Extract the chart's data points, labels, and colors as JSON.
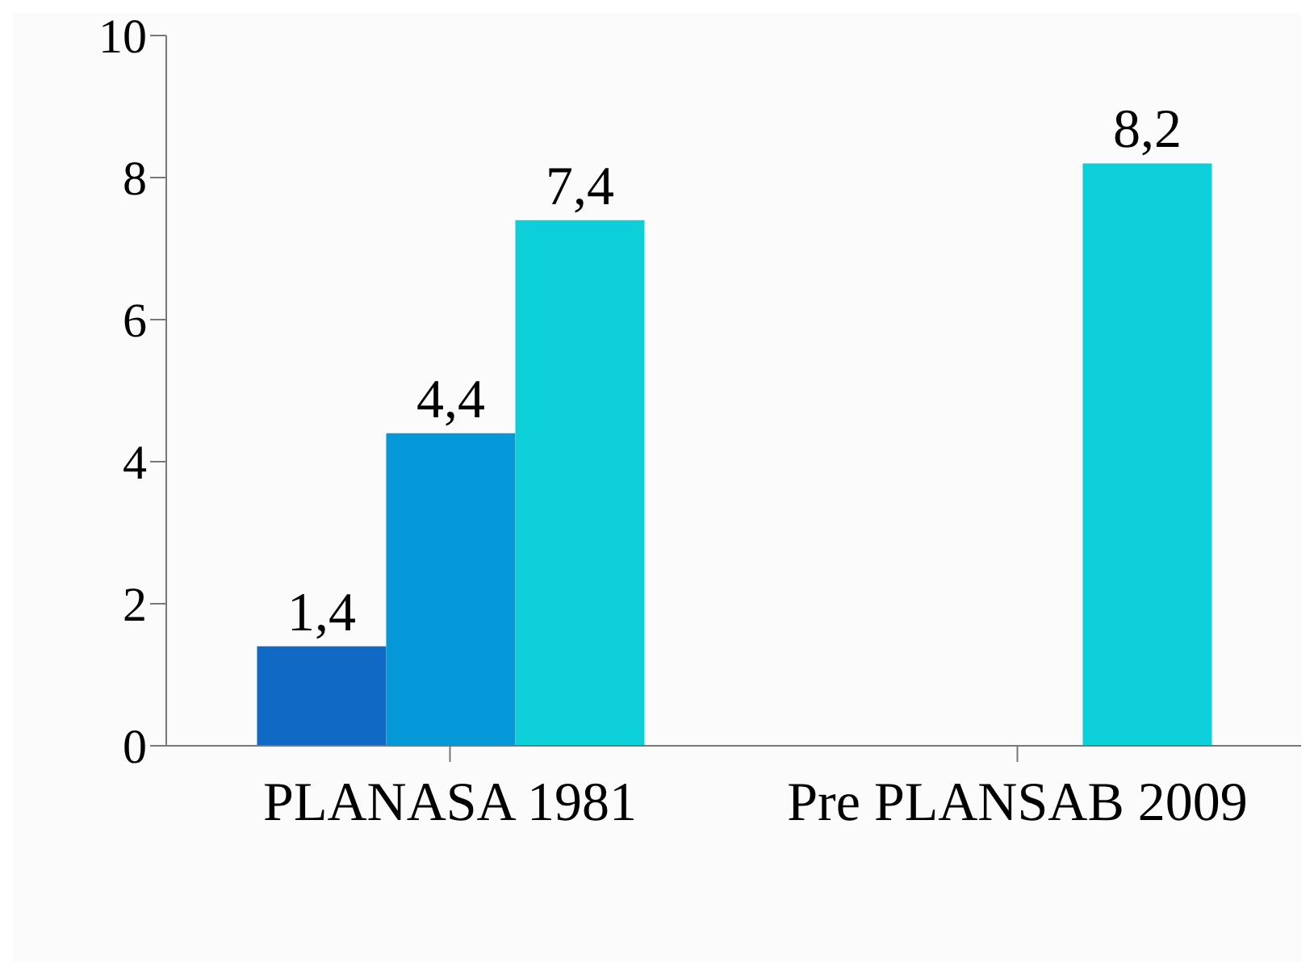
{
  "chart_data": {
    "type": "bar",
    "categories": [
      "PLANASA 1981",
      "Pre PLANSAB 2009"
    ],
    "series": [
      {
        "color": "#1069c4",
        "values": [
          1.4,
          null
        ],
        "value_labels": [
          "1,4",
          null
        ]
      },
      {
        "color": "#0498d8",
        "values": [
          4.4,
          null
        ],
        "value_labels": [
          "4,4",
          null
        ]
      },
      {
        "color": "#0ccfd9",
        "values": [
          7.4,
          8.2
        ],
        "value_labels": [
          "7,4",
          "8,2"
        ]
      }
    ],
    "ylim": [
      0,
      10
    ],
    "yticks": [
      0,
      2,
      4,
      6,
      8,
      10
    ],
    "grid": false,
    "legend": false
  }
}
